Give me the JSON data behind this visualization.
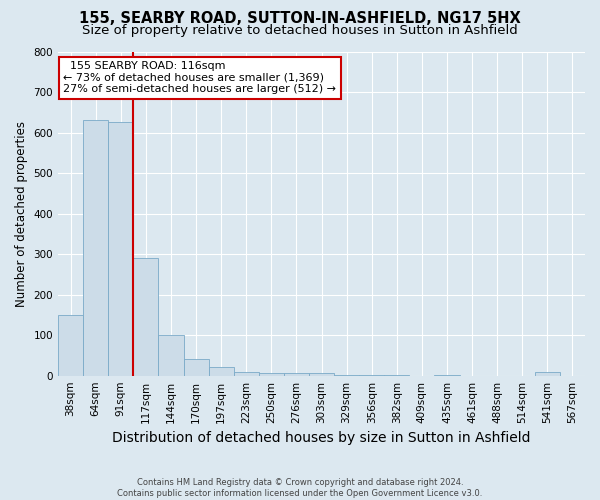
{
  "title": "155, SEARBY ROAD, SUTTON-IN-ASHFIELD, NG17 5HX",
  "subtitle": "Size of property relative to detached houses in Sutton in Ashfield",
  "xlabel": "Distribution of detached houses by size in Sutton in Ashfield",
  "ylabel": "Number of detached properties",
  "footer_line1": "Contains HM Land Registry data © Crown copyright and database right 2024.",
  "footer_line2": "Contains public sector information licensed under the Open Government Licence v3.0.",
  "categories": [
    "38sqm",
    "64sqm",
    "91sqm",
    "117sqm",
    "144sqm",
    "170sqm",
    "197sqm",
    "223sqm",
    "250sqm",
    "276sqm",
    "303sqm",
    "329sqm",
    "356sqm",
    "382sqm",
    "409sqm",
    "435sqm",
    "461sqm",
    "488sqm",
    "514sqm",
    "541sqm",
    "567sqm"
  ],
  "values": [
    150,
    630,
    625,
    290,
    100,
    40,
    22,
    8,
    7,
    7,
    6,
    1,
    1,
    1,
    0,
    1,
    0,
    0,
    0,
    8,
    0
  ],
  "bar_color": "#ccdce8",
  "bar_edge_color": "#7aaac8",
  "vline_color": "#cc0000",
  "annotation_text": "  155 SEARBY ROAD: 116sqm\n← 73% of detached houses are smaller (1,369)\n27% of semi-detached houses are larger (512) →",
  "annotation_box_color": "#ffffff",
  "annotation_box_edge_color": "#cc0000",
  "ylim": [
    0,
    800
  ],
  "yticks": [
    0,
    100,
    200,
    300,
    400,
    500,
    600,
    700,
    800
  ],
  "background_color": "#dce8f0",
  "plot_bg_color": "#dce8f0",
  "grid_color": "#ffffff",
  "title_fontsize": 10.5,
  "subtitle_fontsize": 9.5,
  "xlabel_fontsize": 10,
  "ylabel_fontsize": 8.5,
  "tick_fontsize": 7.5,
  "annotation_fontsize": 8
}
